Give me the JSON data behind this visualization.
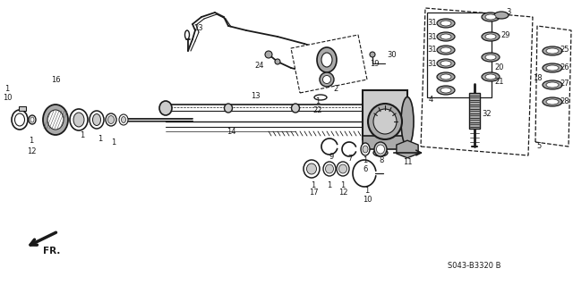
{
  "bg_color": "#ffffff",
  "line_color": "#1a1a1a",
  "gray_dark": "#555555",
  "gray_mid": "#888888",
  "gray_light": "#cccccc",
  "gray_fill": "#aaaaaa",
  "watermark": "S043-B3320 B",
  "title_visible": false
}
